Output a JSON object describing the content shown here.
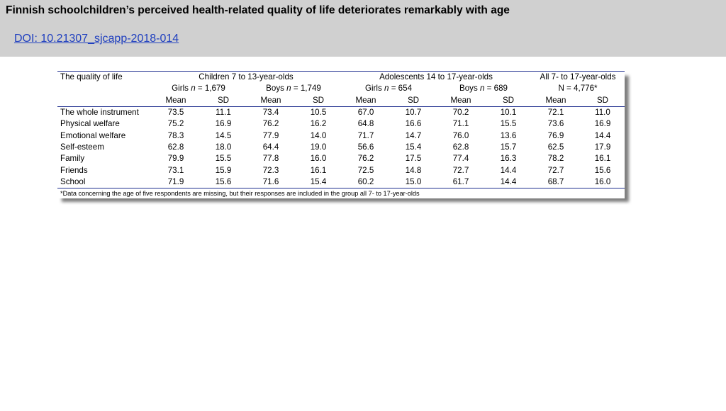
{
  "header": {
    "title": "Finnish schoolchildren’s perceived health-related quality of life deteriorates remarkably with age",
    "doi": "DOI: 10.21307_sjcapp-2018-014"
  },
  "table": {
    "corner_label": "The quality of life",
    "groups": [
      "Children 7 to 13-year-olds",
      "Adolescents 14 to 17-year-olds",
      "All 7- to 17-year-olds"
    ],
    "subgroups": [
      {
        "prefix": "Girls ",
        "n": "n",
        "value": " = 1,679"
      },
      {
        "prefix": "Boys ",
        "n": "n",
        "value": " = 1,749"
      },
      {
        "prefix": "Girls ",
        "n": "n",
        "value": " = 654"
      },
      {
        "prefix": "Boys ",
        "n": "n",
        "value": " = 689"
      },
      {
        "prefix": "N = 4,776*",
        "n": "",
        "value": ""
      }
    ],
    "stat_headers": [
      "Mean",
      "SD",
      "Mean",
      "SD",
      "Mean",
      "SD",
      "Mean",
      "SD",
      "Mean",
      "SD"
    ],
    "rows": [
      {
        "label": "The whole instrument",
        "values": [
          "73.5",
          "11.1",
          "73.4",
          "10.5",
          "67.0",
          "10.7",
          "70.2",
          "10.1",
          "72.1",
          "11.0"
        ]
      },
      {
        "label": "Physical welfare",
        "values": [
          "75.2",
          "16.9",
          "76.2",
          "16.2",
          "64.8",
          "16.6",
          "71.1",
          "15.5",
          "73.6",
          "16.9"
        ]
      },
      {
        "label": "Emotional welfare",
        "values": [
          "78.3",
          "14.5",
          "77.9",
          "14.0",
          "71.7",
          "14.7",
          "76.0",
          "13.6",
          "76.9",
          "14.4"
        ]
      },
      {
        "label": "Self-esteem",
        "values": [
          "62.8",
          "18.0",
          "64.4",
          "19.0",
          "56.6",
          "15.4",
          "62.8",
          "15.7",
          "62.5",
          "17.9"
        ]
      },
      {
        "label": "Family",
        "values": [
          "79.9",
          "15.5",
          "77.8",
          "16.0",
          "76.2",
          "17.5",
          "77.4",
          "16.3",
          "78.2",
          "16.1"
        ]
      },
      {
        "label": "Friends",
        "values": [
          "73.1",
          "15.9",
          "72.3",
          "16.1",
          "72.5",
          "14.8",
          "72.7",
          "14.4",
          "72.7",
          "15.6"
        ]
      },
      {
        "label": "School",
        "values": [
          "71.9",
          "15.6",
          "71.6",
          "15.4",
          "60.2",
          "15.0",
          "61.7",
          "14.4",
          "68.7",
          "16.0"
        ]
      }
    ],
    "footnote": "*Data concerning the age of five respondents are missing, but their responses are included in the group all 7- to 17-year-olds"
  }
}
